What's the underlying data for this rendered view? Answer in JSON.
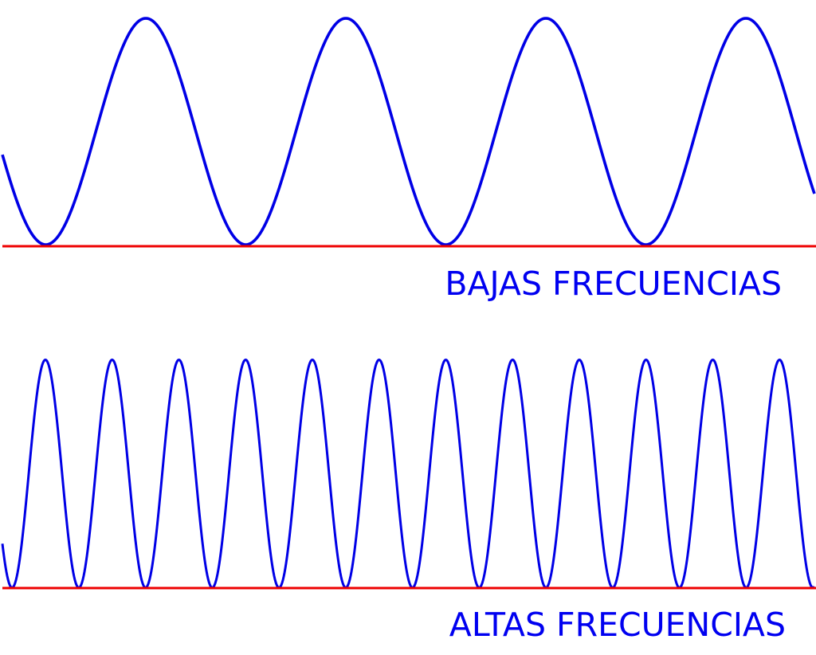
{
  "low_frequency": {
    "label": "BAJAS FRECUENCIAS"
  },
  "high_frequency": {
    "label": "ALTAS FRECUENCIAS"
  }
}
